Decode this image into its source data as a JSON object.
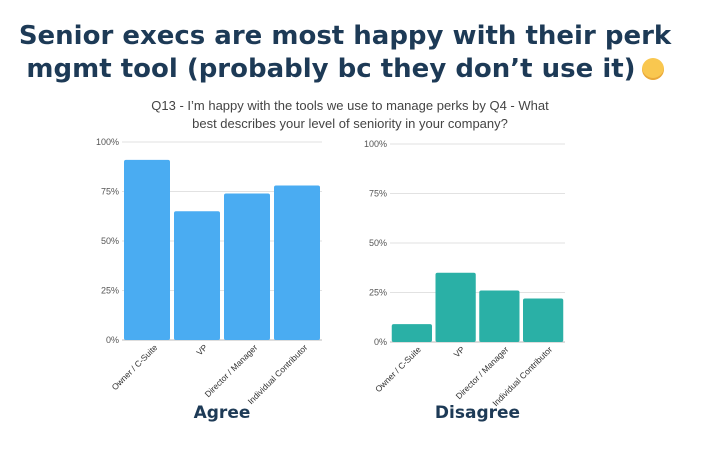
{
  "headline": {
    "line1": "Senior execs are most happy with their perk",
    "line2": "mgmt tool (probably bc they don’t use it)",
    "emoji_icon": "smiling-face-icon"
  },
  "question": {
    "line1": "Q13 - I’m happy with the tools we use to manage perks by Q4 - What",
    "line2": "best describes your level of seniority in your company?"
  },
  "chart_data": [
    {
      "type": "bar",
      "title": "Agree",
      "categories": [
        "Owner / C-Suite",
        "VP",
        "Director / Manager",
        "Individual Contributor"
      ],
      "values": [
        91,
        65,
        74,
        78
      ],
      "ylim": [
        0,
        100
      ],
      "yticks": [
        "0%",
        "25%",
        "50%",
        "75%",
        "100%"
      ],
      "color": "#4aacf2",
      "grid": true
    },
    {
      "type": "bar",
      "title": "Disagree",
      "categories": [
        "Owner / C-Suite",
        "VP",
        "Director / Manager",
        "Individual Contributor"
      ],
      "values": [
        9,
        35,
        26,
        22
      ],
      "ylim": [
        0,
        100
      ],
      "yticks": [
        "0%",
        "25%",
        "50%",
        "75%",
        "100%"
      ],
      "color": "#2ab0a6",
      "grid": true
    }
  ]
}
